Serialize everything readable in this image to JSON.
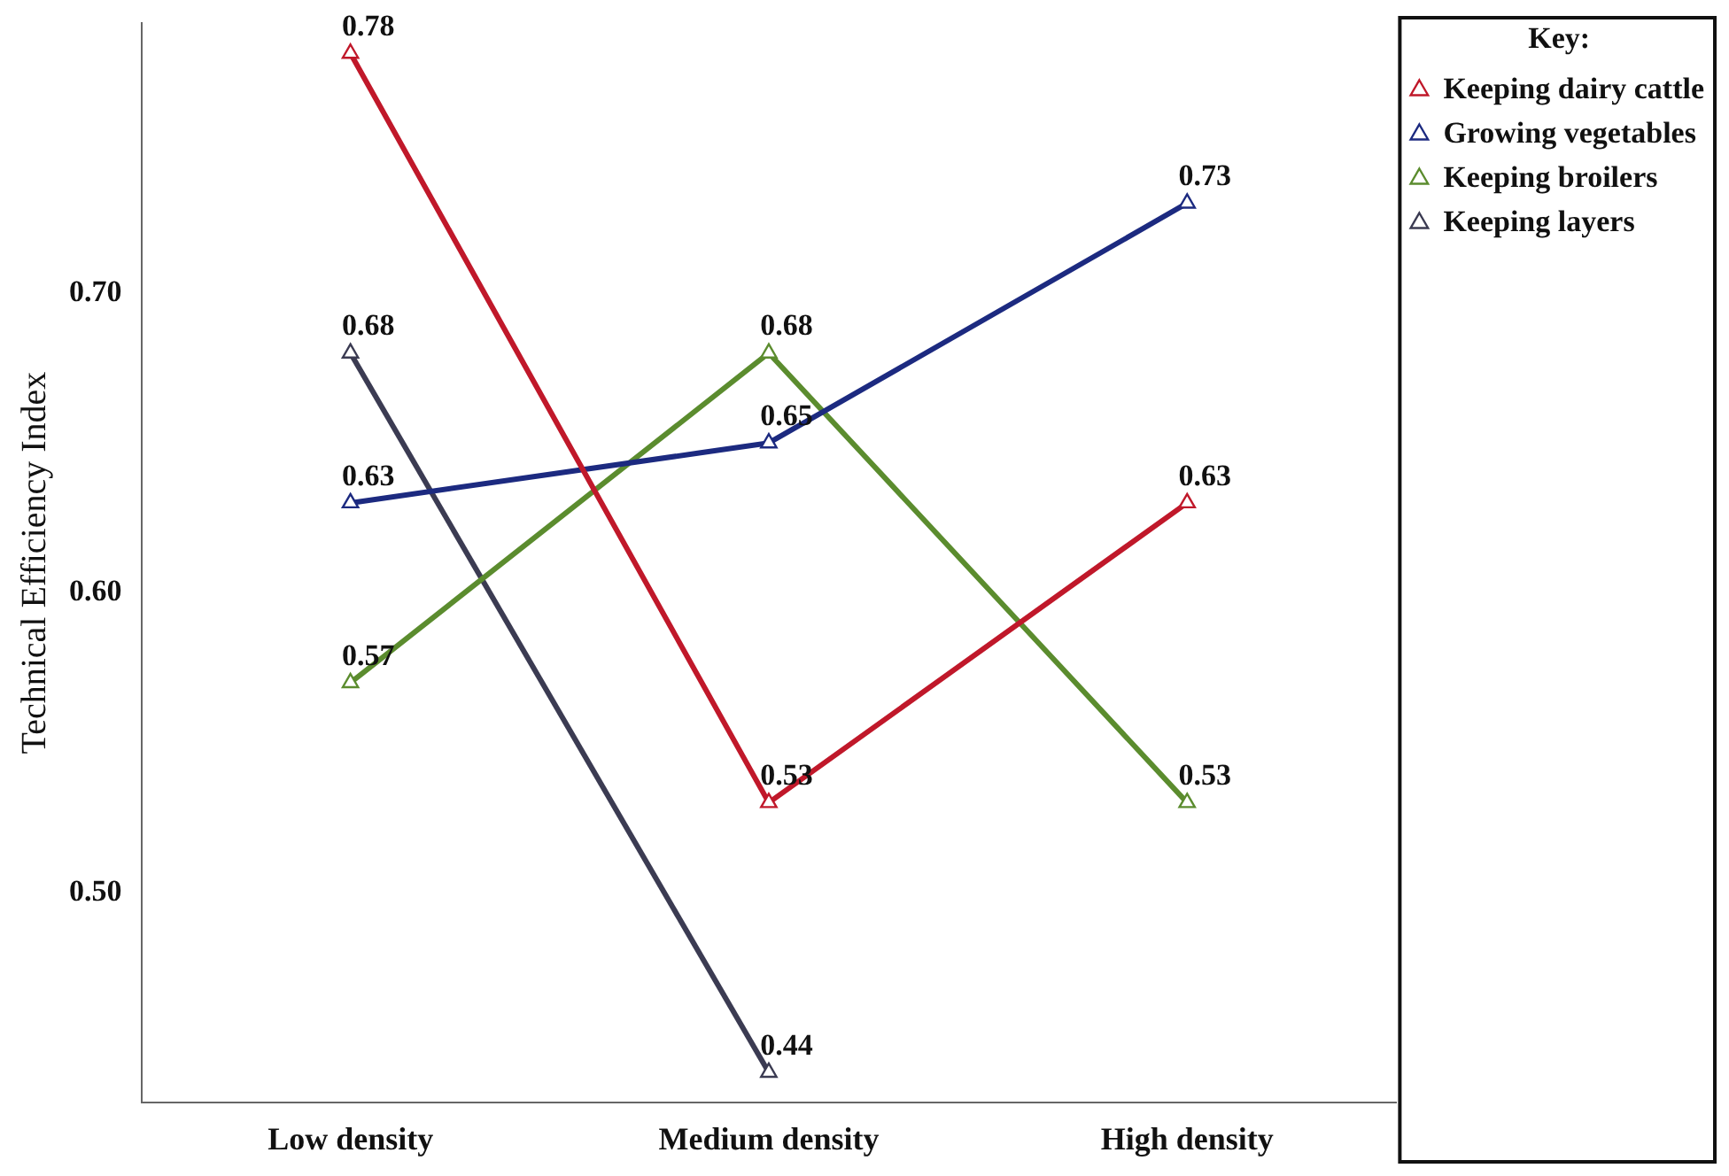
{
  "chart_data": {
    "type": "line",
    "ylabel": "Technical Efficiency Index",
    "legend_title": "Key:",
    "categories": [
      "Low density",
      "Medium density",
      "High density"
    ],
    "series": [
      {
        "name": "Keeping dairy cattle",
        "color": "#c0182a",
        "values": [
          0.78,
          0.53,
          0.63
        ]
      },
      {
        "name": "Growing vegetables",
        "color": "#1c2a80",
        "values": [
          0.63,
          0.65,
          0.73
        ]
      },
      {
        "name": "Keeping broilers",
        "color": "#5b8c2e",
        "values": [
          0.57,
          0.68,
          0.53
        ]
      },
      {
        "name": "Keeping layers",
        "color": "#3b3b52",
        "values": [
          0.68,
          0.44,
          null
        ]
      }
    ],
    "ylim": [
      0.43,
      0.79
    ],
    "yticks": [
      {
        "value": 0.5,
        "label": "0.50"
      },
      {
        "value": 0.6,
        "label": "0.60"
      },
      {
        "value": 0.7,
        "label": "0.70"
      }
    ],
    "grid": false,
    "legend": "top right",
    "marker": "triangle",
    "line_style": "solid",
    "data_labels": true
  }
}
